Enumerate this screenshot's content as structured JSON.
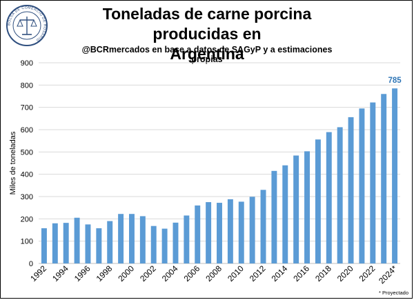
{
  "header": {
    "title_line1": "Toneladas de carne porcina producidas en",
    "title_line2": "Argentina",
    "subtitle": "@BCRmercados  en base a datos de SAGyP y a estimaciones propias",
    "logo_text": "BOLSA DE COMERCIO DE ROSARIO"
  },
  "footnote": "* Proyectado",
  "chart_data": {
    "type": "bar",
    "title": "Toneladas de carne porcina producidas en Argentina",
    "subtitle": "@BCRmercados  en base a datos de SAGyP y a estimaciones propias",
    "xlabel": "",
    "ylabel": "Miles de toneladas",
    "ylim": [
      0,
      900
    ],
    "yticks": [
      0,
      100,
      200,
      300,
      400,
      500,
      600,
      700,
      800,
      900
    ],
    "grid": true,
    "legend": "none",
    "bar_color": "#5B9BD5",
    "categories": [
      "1992",
      "1993",
      "1994",
      "1995",
      "1996",
      "1997",
      "1998",
      "1999",
      "2000",
      "2001",
      "2002",
      "2003",
      "2004",
      "2005",
      "2006",
      "2007",
      "2008",
      "2009",
      "2010",
      "2011",
      "2012",
      "2013",
      "2014",
      "2015",
      "2016",
      "2017",
      "2018",
      "2019",
      "2020",
      "2021",
      "2022",
      "2023",
      "2024*"
    ],
    "xtick_labels": [
      "1992",
      "",
      "1994",
      "",
      "1996",
      "",
      "1998",
      "",
      "2000",
      "",
      "2002",
      "",
      "2004",
      "",
      "2006",
      "",
      "2008",
      "",
      "2010",
      "",
      "2012",
      "",
      "2014",
      "",
      "2016",
      "",
      "2018",
      "",
      "2020",
      "",
      "2022",
      "",
      "2024*"
    ],
    "values": [
      158,
      180,
      182,
      205,
      175,
      158,
      190,
      222,
      222,
      212,
      168,
      156,
      183,
      215,
      260,
      275,
      272,
      288,
      277,
      299,
      330,
      415,
      440,
      484,
      503,
      556,
      589,
      611,
      656,
      695,
      722,
      760,
      785
    ],
    "data_labels": [
      {
        "index": 32,
        "text": "785",
        "color": "#2E75B6"
      }
    ]
  }
}
